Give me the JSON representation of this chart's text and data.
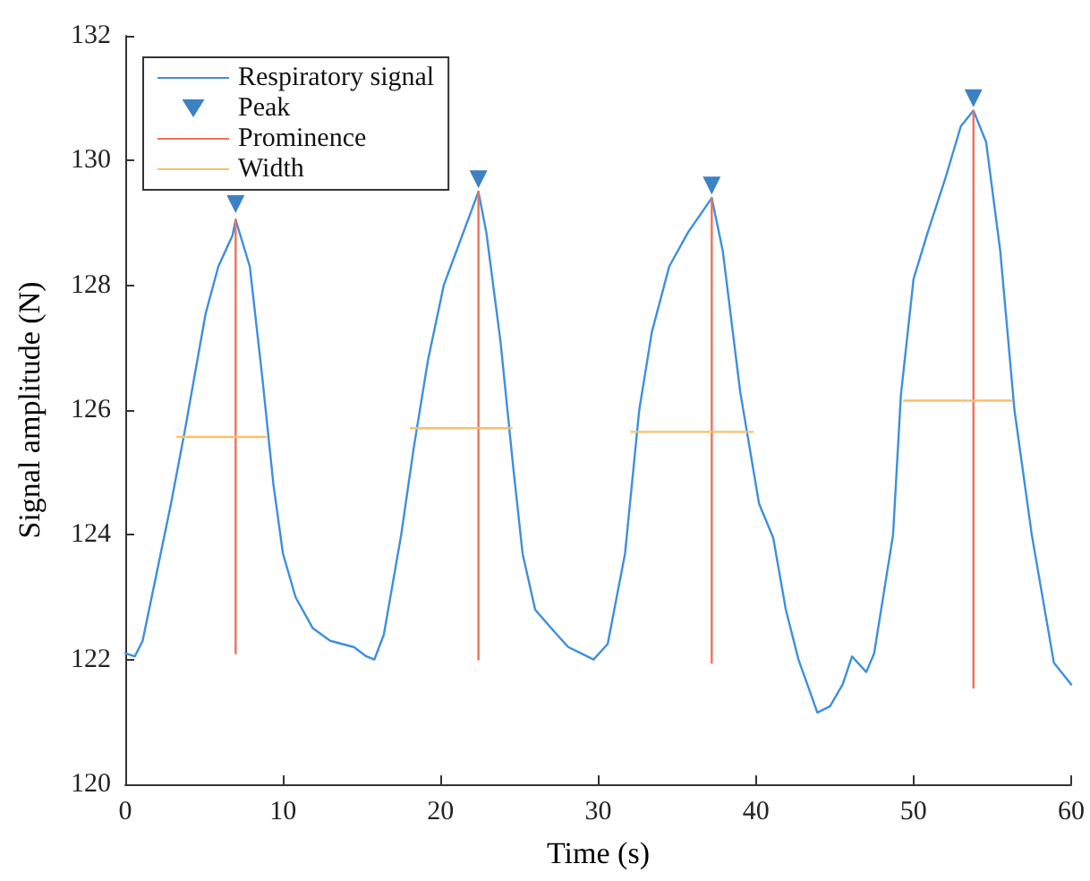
{
  "chart_data": {
    "type": "line",
    "xlabel": "Time (s)",
    "ylabel": "Signal amplitude (N)",
    "xlim": [
      0,
      60
    ],
    "ylim": [
      120,
      132
    ],
    "xticks": [
      0,
      10,
      20,
      30,
      40,
      50,
      60
    ],
    "yticks": [
      120,
      122,
      124,
      126,
      128,
      130,
      132
    ],
    "grid": false,
    "legend": "top left",
    "series": [
      {
        "name": "Respiratory signal",
        "color": "#3d8fe0",
        "marker": "none",
        "x": [
          0,
          0.6,
          1.1,
          2.0,
          2.9,
          3.8,
          4.5,
          5.1,
          5.9,
          6.8,
          7.0,
          7.9,
          8.7,
          9.4,
          10.0,
          10.8,
          11.9,
          13.0,
          14.5,
          15.3,
          15.8,
          16.4,
          17.5,
          18.3,
          19.2,
          20.2,
          21.3,
          22.4,
          22.9,
          23.8,
          24.6,
          25.2,
          26.0,
          27.2,
          28.1,
          28.9,
          29.7,
          30.6,
          31.7,
          32.6,
          33.4,
          34.5,
          35.7,
          37.2,
          37.9,
          39.0,
          40.2,
          41.1,
          41.9,
          42.7,
          43.9,
          44.7,
          45.5,
          46.1,
          47.0,
          47.5,
          48.7,
          49.2,
          50.0,
          50.9,
          52.0,
          53.0,
          53.8,
          54.6,
          55.5,
          56.4,
          57.5,
          58.9,
          60
        ],
        "values": [
          122.1,
          122.05,
          122.3,
          123.4,
          124.5,
          125.7,
          126.7,
          127.55,
          128.3,
          128.8,
          129.05,
          128.3,
          126.5,
          124.8,
          123.7,
          123.0,
          122.5,
          122.3,
          122.2,
          122.05,
          122.0,
          122.4,
          124.0,
          125.4,
          126.8,
          128.0,
          128.75,
          129.5,
          128.85,
          127.1,
          125.1,
          123.7,
          122.8,
          122.45,
          122.2,
          122.1,
          122.0,
          122.25,
          123.7,
          126.0,
          127.25,
          128.3,
          128.85,
          129.4,
          128.55,
          126.3,
          124.5,
          123.95,
          122.8,
          122.0,
          121.15,
          121.25,
          121.6,
          122.05,
          121.8,
          122.1,
          124.0,
          126.25,
          128.1,
          128.85,
          129.7,
          130.55,
          130.8,
          130.3,
          128.55,
          126.0,
          124.0,
          121.95,
          121.6
        ]
      },
      {
        "name": "Peak",
        "type": "scatter",
        "color": "#0b62b5",
        "marker": "triangle",
        "x": [
          7.0,
          22.4,
          37.2,
          53.8
        ],
        "values": [
          129.3,
          129.7,
          129.6,
          131.0
        ]
      },
      {
        "name": "Prominence",
        "color": "#f0705a",
        "marker": "none",
        "x": [
          7.0,
          7.0
        ],
        "values": [
          129.05,
          122.1
        ]
      },
      {
        "color": "#f0705a",
        "marker": "none",
        "x": [
          22.4,
          22.4
        ],
        "values": [
          129.5,
          122.0
        ]
      },
      {
        "color": "#f0705a",
        "marker": "none",
        "x": [
          37.2,
          37.2
        ],
        "values": [
          129.4,
          121.95
        ]
      },
      {
        "color": "#f0705a",
        "marker": "none",
        "x": [
          53.8,
          53.8
        ],
        "values": [
          130.8,
          121.55
        ]
      },
      {
        "name": "Width",
        "color": "#f5c16c",
        "marker": "none",
        "x": [
          3.3,
          8.9
        ],
        "values": [
          125.57,
          125.57
        ]
      },
      {
        "color": "#f5c16c",
        "marker": "none",
        "x": [
          18.1,
          24.5
        ],
        "values": [
          125.71,
          125.71
        ]
      },
      {
        "color": "#f5c16c",
        "marker": "none",
        "x": [
          32.1,
          39.8
        ],
        "values": [
          125.65,
          125.65
        ]
      },
      {
        "color": "#f5c16c",
        "marker": "none",
        "x": [
          49.4,
          56.2
        ],
        "values": [
          126.15,
          126.15
        ]
      }
    ]
  }
}
